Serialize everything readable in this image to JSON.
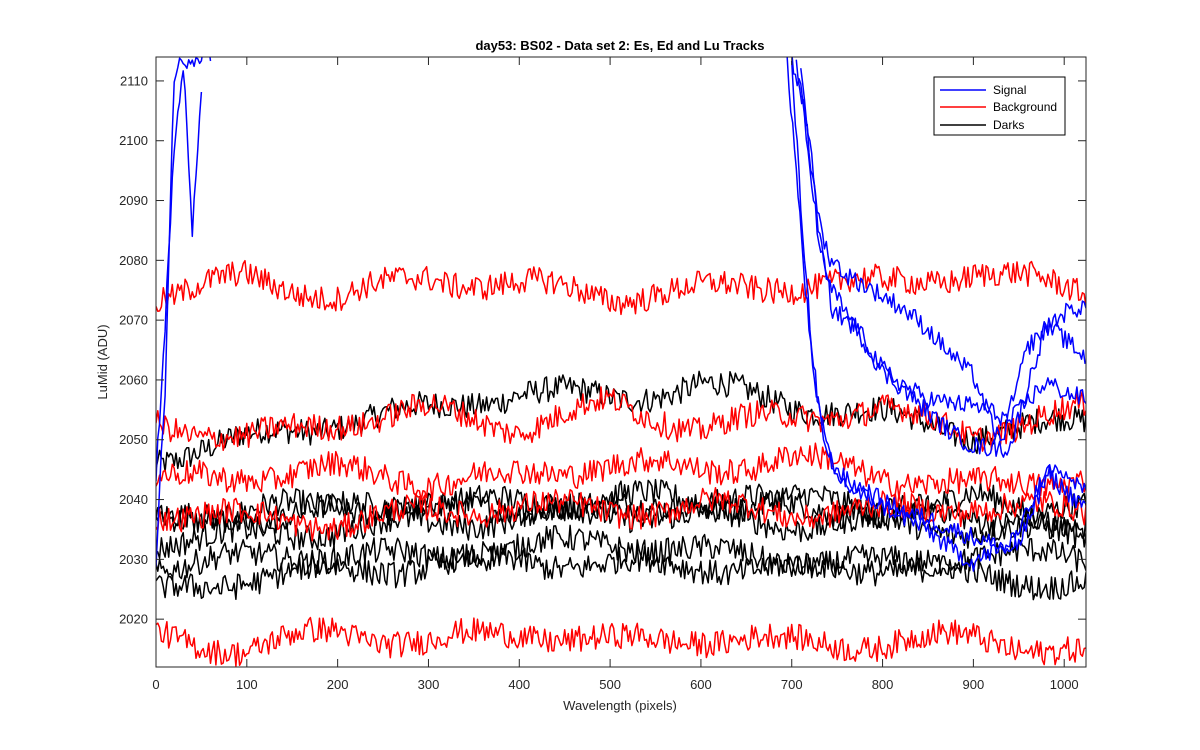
{
  "chart_data": {
    "type": "line",
    "title": "day53: BS02 - Data set 2: Es, Ed and Lu Tracks",
    "xlabel": "Wavelength (pixels)",
    "ylabel": "LuMid (ADU)",
    "xlim": [
      0,
      1024
    ],
    "ylim": [
      2012,
      2114
    ],
    "xticks": [
      0,
      100,
      200,
      300,
      400,
      500,
      600,
      700,
      800,
      900,
      1000
    ],
    "yticks": [
      2020,
      2030,
      2040,
      2050,
      2060,
      2070,
      2080,
      2090,
      2100,
      2110
    ],
    "grid": false,
    "legend_position": "top-right",
    "legend": [
      {
        "label": "Signal",
        "color": "#0000ff"
      },
      {
        "label": "Background",
        "color": "#ff0000"
      },
      {
        "label": "Darks",
        "color": "#000000"
      }
    ],
    "series": [
      {
        "group": "Darks",
        "color": "#000000",
        "x": [
          0,
          100,
          200,
          300,
          400,
          500,
          600,
          700,
          800,
          900,
          1024
        ],
        "values": [
          2047,
          2050,
          2053,
          2055,
          2058,
          2057,
          2059,
          2056,
          2054,
          2051,
          2053
        ]
      },
      {
        "group": "Darks",
        "color": "#000000",
        "x": [
          0,
          100,
          200,
          300,
          400,
          500,
          600,
          700,
          800,
          900,
          1024
        ],
        "values": [
          2037,
          2038,
          2039,
          2038,
          2039,
          2038,
          2040,
          2039,
          2038,
          2037,
          2038
        ]
      },
      {
        "group": "Darks",
        "color": "#000000",
        "x": [
          0,
          100,
          200,
          300,
          400,
          500,
          600,
          700,
          800,
          900,
          1024
        ],
        "values": [
          2036,
          2037,
          2038,
          2040,
          2039,
          2041,
          2039,
          2040,
          2038,
          2040,
          2036
        ]
      },
      {
        "group": "Darks",
        "color": "#000000",
        "x": [
          0,
          100,
          200,
          300,
          400,
          500,
          600,
          700,
          800,
          900,
          1024
        ],
        "values": [
          2033,
          2034,
          2035,
          2036,
          2037,
          2038,
          2037,
          2036,
          2036,
          2035,
          2034
        ]
      },
      {
        "group": "Darks",
        "color": "#000000",
        "x": [
          0,
          100,
          200,
          300,
          400,
          500,
          600,
          700,
          800,
          900,
          1024
        ],
        "values": [
          2029,
          2030,
          2031,
          2030,
          2032,
          2033,
          2031,
          2030,
          2029,
          2031,
          2030
        ]
      },
      {
        "group": "Darks",
        "color": "#000000",
        "x": [
          0,
          100,
          200,
          300,
          400,
          500,
          600,
          700,
          800,
          900,
          1024
        ],
        "values": [
          2024,
          2027,
          2028,
          2029,
          2030,
          2029,
          2029,
          2028,
          2029,
          2027,
          2026
        ]
      },
      {
        "group": "Background",
        "color": "#ff0000",
        "x": [
          0,
          100,
          200,
          300,
          400,
          500,
          600,
          700,
          800,
          900,
          1024
        ],
        "values": [
          2074,
          2077,
          2074,
          2077,
          2076,
          2074,
          2075,
          2076,
          2076,
          2078,
          2075
        ]
      },
      {
        "group": "Background",
        "color": "#ff0000",
        "x": [
          0,
          100,
          200,
          300,
          400,
          500,
          600,
          700,
          800,
          900,
          1024
        ],
        "values": [
          2053,
          2050,
          2053,
          2055,
          2052,
          2056,
          2052,
          2054,
          2055,
          2051,
          2055
        ]
      },
      {
        "group": "Background",
        "color": "#ff0000",
        "x": [
          0,
          100,
          200,
          300,
          400,
          500,
          600,
          700,
          800,
          900,
          1024
        ],
        "values": [
          2043,
          2044,
          2045,
          2043,
          2044,
          2046,
          2045,
          2047,
          2044,
          2042,
          2044
        ]
      },
      {
        "group": "Background",
        "color": "#ff0000",
        "x": [
          0,
          100,
          200,
          300,
          400,
          500,
          600,
          700,
          800,
          900,
          1024
        ],
        "values": [
          2038,
          2037,
          2036,
          2038,
          2039,
          2038,
          2039,
          2038,
          2038,
          2039,
          2038
        ]
      },
      {
        "group": "Background",
        "color": "#ff0000",
        "x": [
          0,
          100,
          200,
          300,
          400,
          500,
          600,
          700,
          800,
          900,
          1024
        ],
        "values": [
          2017,
          2015,
          2018,
          2016,
          2018,
          2016,
          2017,
          2016,
          2016,
          2017,
          2014
        ]
      },
      {
        "group": "Signal",
        "color": "#0000ff",
        "x": [
          0,
          10,
          20,
          30,
          40,
          50,
          60
        ],
        "values": [
          2030,
          2060,
          2112,
          2114,
          2114,
          2114,
          2114
        ]
      },
      {
        "group": "Signal",
        "color": "#0000ff",
        "x": [
          0,
          10,
          20,
          30,
          40,
          50
        ],
        "values": [
          2045,
          2070,
          2100,
          2114,
          2085,
          2110
        ]
      },
      {
        "group": "Signal",
        "color": "#0000ff",
        "x": [
          700,
          710,
          720,
          730,
          740,
          760,
          800,
          850,
          900,
          940,
          980,
          1024
        ],
        "values": [
          2114,
          2108,
          2095,
          2082,
          2075,
          2070,
          2062,
          2058,
          2055,
          2052,
          2060,
          2058
        ]
      },
      {
        "group": "Signal",
        "color": "#0000ff",
        "x": [
          705,
          715,
          725,
          735,
          745,
          770,
          800,
          850,
          900,
          940,
          980,
          1024
        ],
        "values": [
          2114,
          2105,
          2092,
          2080,
          2072,
          2068,
          2060,
          2055,
          2050,
          2048,
          2068,
          2064
        ]
      },
      {
        "group": "Signal",
        "color": "#0000ff",
        "x": [
          710,
          720,
          730,
          740,
          760,
          800,
          850,
          900,
          930,
          960,
          1000,
          1024
        ],
        "values": [
          2114,
          2100,
          2088,
          2082,
          2078,
          2073,
          2068,
          2062,
          2050,
          2065,
          2070,
          2072
        ]
      },
      {
        "group": "Signal",
        "color": "#0000ff",
        "x": [
          695,
          705,
          715,
          725,
          740,
          760,
          800,
          850,
          900,
          940,
          980,
          1024
        ],
        "values": [
          2114,
          2095,
          2075,
          2058,
          2046,
          2042,
          2040,
          2038,
          2033,
          2030,
          2045,
          2040
        ]
      },
      {
        "group": "Signal",
        "color": "#0000ff",
        "x": [
          700,
          710,
          720,
          730,
          745,
          770,
          800,
          850,
          900,
          950,
          990,
          1024
        ],
        "values": [
          2114,
          2090,
          2070,
          2055,
          2044,
          2040,
          2038,
          2036,
          2030,
          2032,
          2046,
          2042
        ]
      }
    ]
  }
}
